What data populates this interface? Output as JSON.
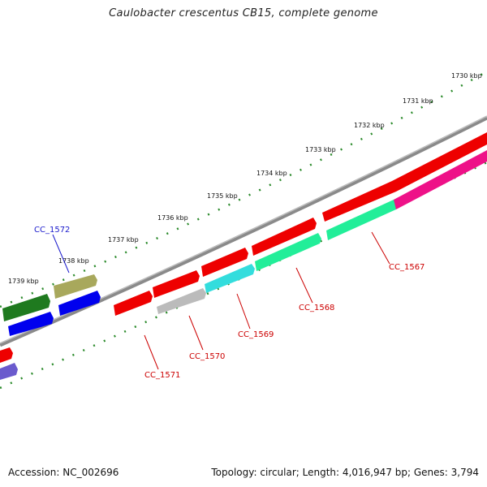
{
  "title": "Caulobacter crescentus CB15, complete genome",
  "footer": {
    "accession": "Accession: NC_002696",
    "stats": "Topology: circular; Length: 4,016,947 bp; Genes: 3,794"
  },
  "ticks": [
    "1730 kbp",
    "1731 kbp",
    "1732 kbp",
    "1733 kbp",
    "1734 kbp",
    "1735 kbp",
    "1736 kbp",
    "1737 kbp",
    "1738 kbp",
    "1739 kbp"
  ],
  "gene_labels": [
    "CC_1567",
    "CC_1568",
    "CC_1569",
    "CC_1570",
    "CC_1571",
    "CC_1572"
  ],
  "colors": {
    "backbone": "#777777",
    "tick": "#2a8a2a",
    "label_forward": "#cc0000",
    "label_reverse": "#1a1acc"
  }
}
